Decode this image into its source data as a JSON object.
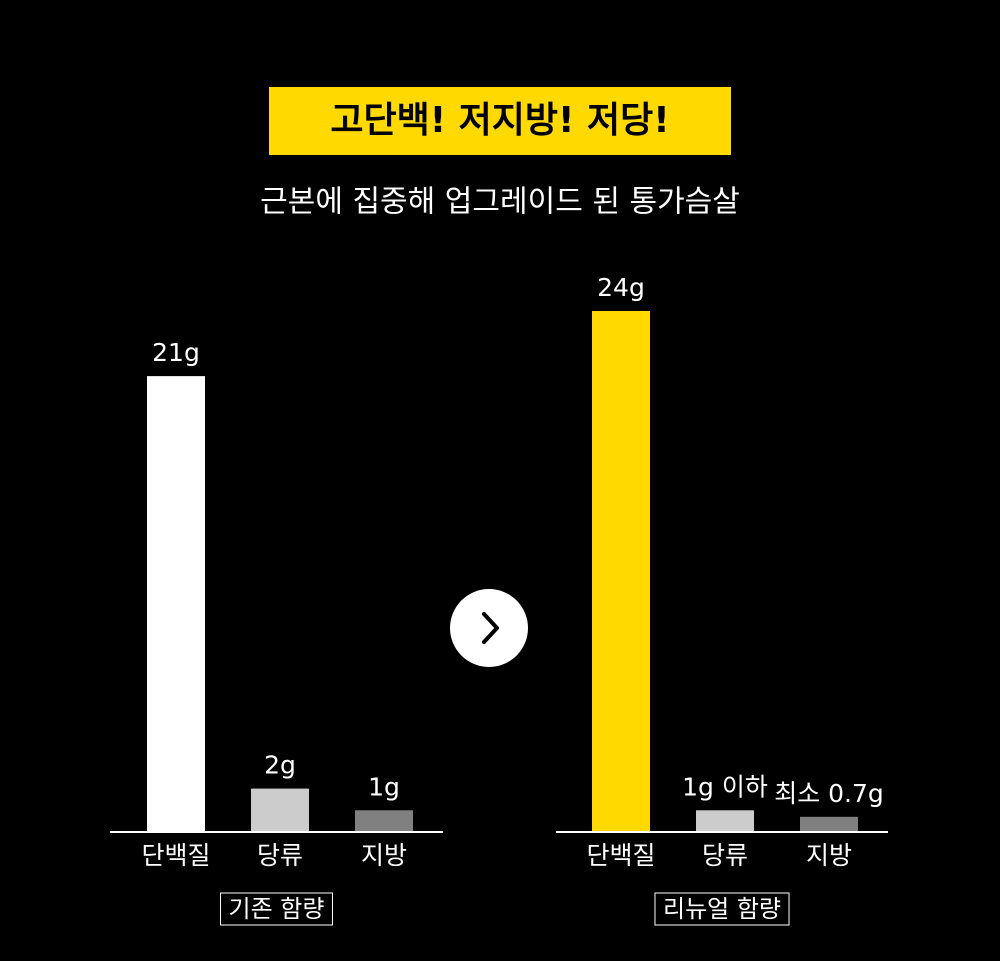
{
  "header": {
    "title": "고단백! 저지방! 저당!",
    "subtitle": "근본에 집중해 업그레이드 된 통가슴살"
  },
  "chart_data": [
    {
      "type": "bar",
      "title": "기존 함량",
      "categories": [
        "단백질",
        "당류",
        "지방"
      ],
      "values": [
        21,
        2,
        1
      ],
      "value_labels": [
        "21g",
        "2g",
        "1g"
      ],
      "colors": [
        "#ffffff",
        "#cccccc",
        "#808080"
      ],
      "ylim": [
        0,
        24
      ]
    },
    {
      "type": "bar",
      "title": "리뉴얼 함량",
      "categories": [
        "단백질",
        "당류",
        "지방"
      ],
      "values": [
        24,
        1,
        0.7
      ],
      "value_labels": [
        "24g",
        "1g 이하",
        "최소 0.7g"
      ],
      "colors": [
        "#ffd900",
        "#cccccc",
        "#808080"
      ],
      "ylim": [
        0,
        24
      ]
    }
  ]
}
